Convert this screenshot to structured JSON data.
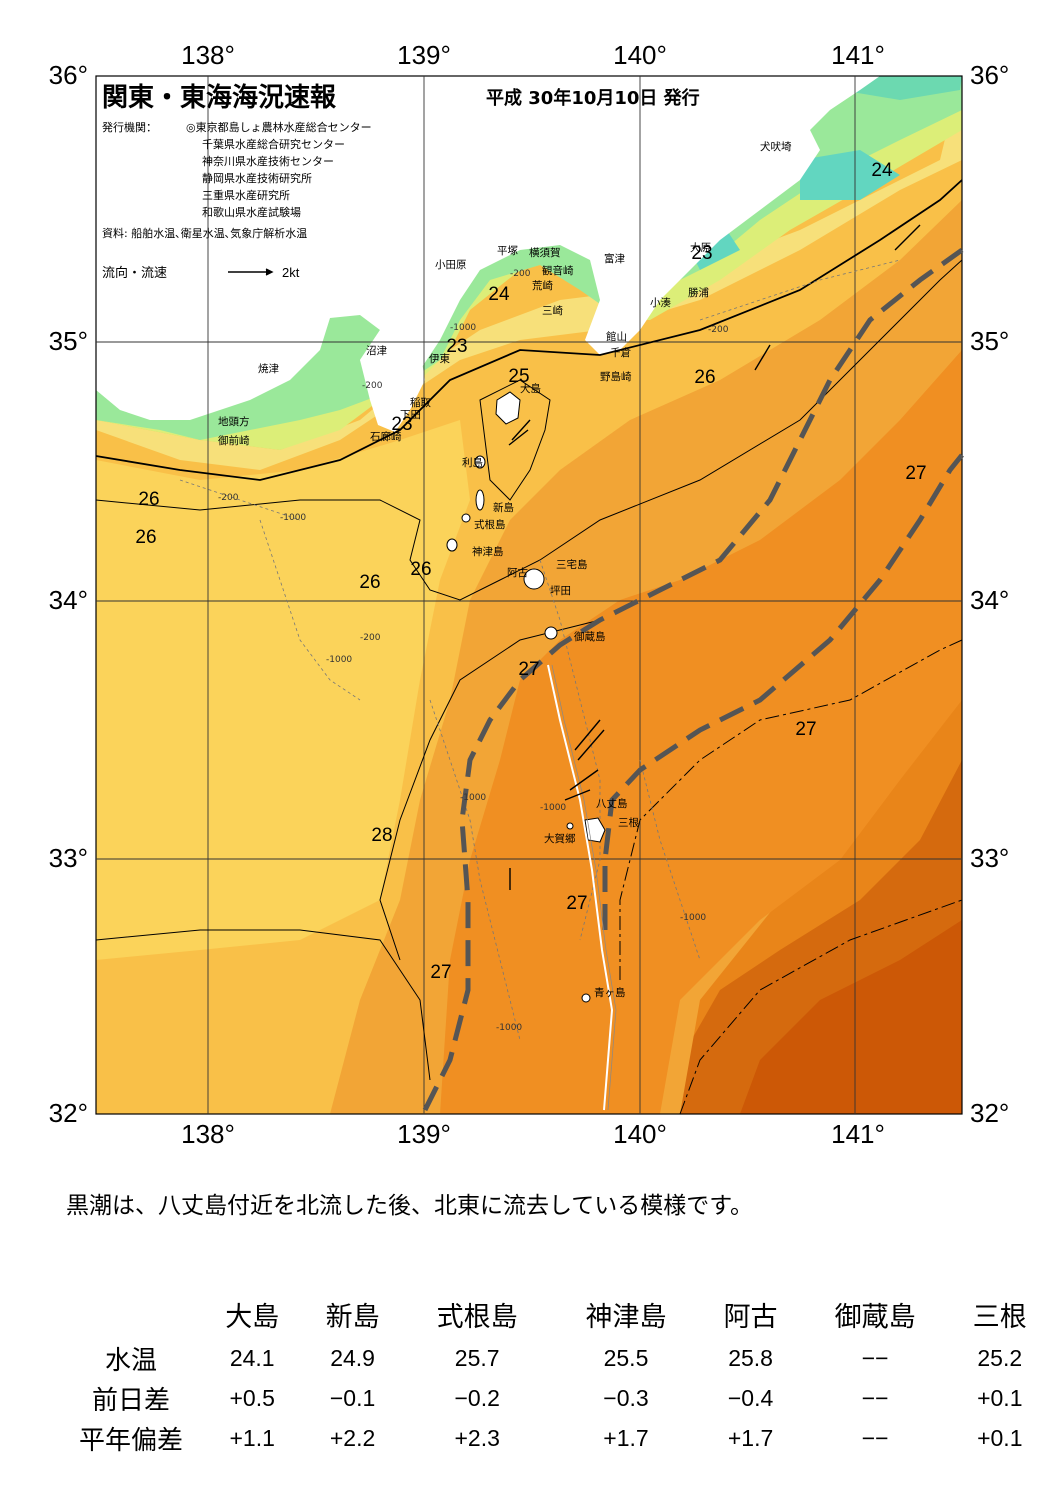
{
  "header": {
    "title": "関東・東海海況速報",
    "issue_date": "平成 30年10月10日 発行",
    "issuer_label": "発行機関：",
    "issuers": [
      "◎東京都島しょ農林水産総合センター",
      "千葉県水産総合研究センター",
      "神奈川県水産技術センター",
      "静岡県水産技術研究所",
      "三重県水産研究所",
      "和歌山県水産試験場"
    ],
    "sources": "資料: 船舶水温､衛星水温､気象庁解析水温",
    "current_legend": "流向・流速",
    "current_scale": "2kt"
  },
  "map": {
    "longitudes": [
      "138°",
      "139°",
      "140°",
      "141°"
    ],
    "latitudes": [
      "36°",
      "35°",
      "34°",
      "33°",
      "32°"
    ],
    "isotherm_labels": [
      "24",
      "24",
      "23",
      "23",
      "23",
      "25",
      "26",
      "26",
      "26",
      "26",
      "26",
      "27",
      "27",
      "27",
      "27",
      "27",
      "28"
    ],
    "depth_labels": [
      "-200",
      "-1000",
      "-200",
      "-1000",
      "-200",
      "-1000",
      "-200",
      "-1000",
      "-1000",
      "-1000",
      "-200",
      "-1000"
    ],
    "places": [
      "犬吠埼",
      "富津",
      "大原",
      "勝浦",
      "小湊",
      "館山",
      "千倉",
      "野島崎",
      "横須賀",
      "観音崎",
      "荒崎",
      "三崎",
      "平塚",
      "小田原",
      "沼津",
      "伊東",
      "焼津",
      "稲取",
      "下田",
      "石廊崎",
      "地頭方",
      "御前崎",
      "大島",
      "利島",
      "新島",
      "式根島",
      "神津島",
      "三宅島",
      "阿古",
      "坪田",
      "御蔵島",
      "八丈島",
      "三根",
      "大賀郷",
      "青ヶ島"
    ],
    "colors": {
      "land": "#ffffff",
      "t23": "#9ae89a",
      "t24": "#dcee78",
      "t25": "#fbe07a",
      "t26": "#f9c048",
      "t27": "#f29a2c",
      "t28": "#e07712",
      "t28b": "#d05c0a",
      "kuroshio": "#555555"
    }
  },
  "summary": "黒潮は、八丈島付近を北流した後、北東に流去している模様です。",
  "table": {
    "stations": [
      "大島",
      "新島",
      "式根島",
      "神津島",
      "阿古",
      "御蔵島",
      "三根"
    ],
    "rows": [
      {
        "label": "水温",
        "values": [
          "24.1",
          "24.9",
          "25.7",
          "25.5",
          "25.8",
          "−−",
          "25.2"
        ]
      },
      {
        "label": "前日差",
        "values": [
          "+0.5",
          "−0.1",
          "−0.2",
          "−0.3",
          "−0.4",
          "−−",
          "+0.1"
        ]
      },
      {
        "label": "平年偏差",
        "values": [
          "+1.1",
          "+2.2",
          "+2.3",
          "+1.7",
          "+1.7",
          "−−",
          "+0.1"
        ]
      }
    ]
  }
}
